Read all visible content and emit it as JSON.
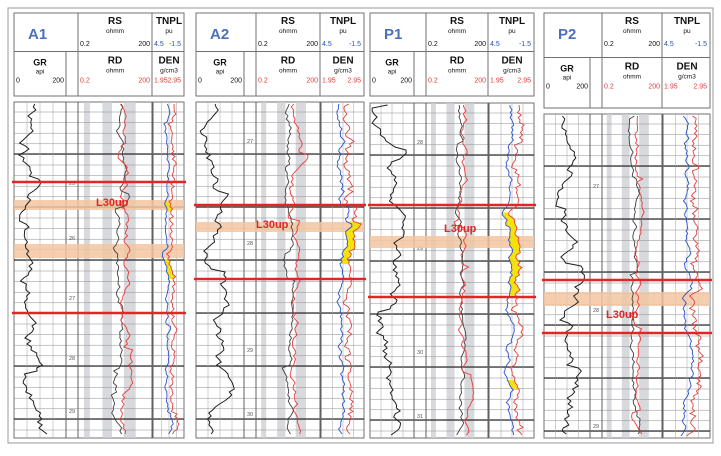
{
  "panels": [
    {
      "well": "A1",
      "rs": {
        "name": "RS",
        "unit": "ohmm",
        "min": "0.2",
        "max": "200"
      },
      "tnpl": {
        "name": "TNPL",
        "unit": "pu",
        "min": "4.5",
        "max": "-1.5"
      },
      "gr": {
        "name": "GR",
        "unit": "api",
        "min": "0",
        "max": "200"
      },
      "rd": {
        "name": "RD",
        "unit": "ohmm",
        "min": "0.2",
        "max": "200"
      },
      "den": {
        "name": "DEN",
        "unit": "g/cm3",
        "min": "1.95",
        "max": "2.95"
      },
      "depth_ticks": [
        "25",
        "26",
        "27",
        "28",
        "29"
      ],
      "marker_label": "L30up"
    },
    {
      "well": "A2",
      "rs": {
        "name": "RS",
        "unit": "ohmm",
        "min": "0.2",
        "max": "200"
      },
      "tnpl": {
        "name": "TNPL",
        "unit": "pu",
        "min": "4.5",
        "max": "-1.5"
      },
      "gr": {
        "name": "GR",
        "unit": "api",
        "min": "0",
        "max": "200"
      },
      "rd": {
        "name": "RD",
        "unit": "ohmm",
        "min": "0.2",
        "max": "200"
      },
      "den": {
        "name": "DEN",
        "unit": "g/cm3",
        "min": "1.95",
        "max": "2.95"
      },
      "depth_ticks": [
        "27",
        "28",
        "29",
        "30"
      ],
      "marker_label": "L30up"
    },
    {
      "well": "P1",
      "rs": {
        "name": "RS",
        "unit": "ohmm",
        "min": "0.2",
        "max": "200"
      },
      "tnpl": {
        "name": "TNPL",
        "unit": "pu",
        "min": "4.5",
        "max": "-1.5"
      },
      "gr": {
        "name": "GR",
        "unit": "api",
        "min": "0",
        "max": "200"
      },
      "rd": {
        "name": "RD",
        "unit": "ohmm",
        "min": "0.2",
        "max": "200"
      },
      "den": {
        "name": "DEN",
        "unit": "g/cm3",
        "min": "1.95",
        "max": "2.95"
      },
      "depth_ticks": [
        "28",
        "29",
        "30",
        "31"
      ],
      "marker_label": "L30up"
    },
    {
      "well": "P2",
      "rs": {
        "name": "RS",
        "unit": "ohmm",
        "min": "0.2",
        "max": "200"
      },
      "tnpl": {
        "name": "TNPL",
        "unit": "pu",
        "min": "4.5",
        "max": "-1.5"
      },
      "gr": {
        "name": "GR",
        "unit": "api",
        "min": "0",
        "max": "200"
      },
      "rd": {
        "name": "RD",
        "unit": "ohmm",
        "min": "0.2",
        "max": "200"
      },
      "den": {
        "name": "DEN",
        "unit": "g/cm3",
        "min": "1.95",
        "max": "2.95"
      },
      "depth_ticks": [
        "27",
        "28",
        "29"
      ],
      "marker_label": "L30up"
    }
  ],
  "colors": {
    "well_title": "#4a72b8",
    "marker_line": "#e02626",
    "zone_band": "#f2c6a0",
    "gr_curve": "#202020",
    "rd_curve": "#e83a3a",
    "rs_curve": "#404040",
    "den_curve": "#2a52c8",
    "tnpl_curve": "#e04040",
    "crossover_fill": "#f5e000",
    "resistivity_shade": "#c9ccd2"
  }
}
